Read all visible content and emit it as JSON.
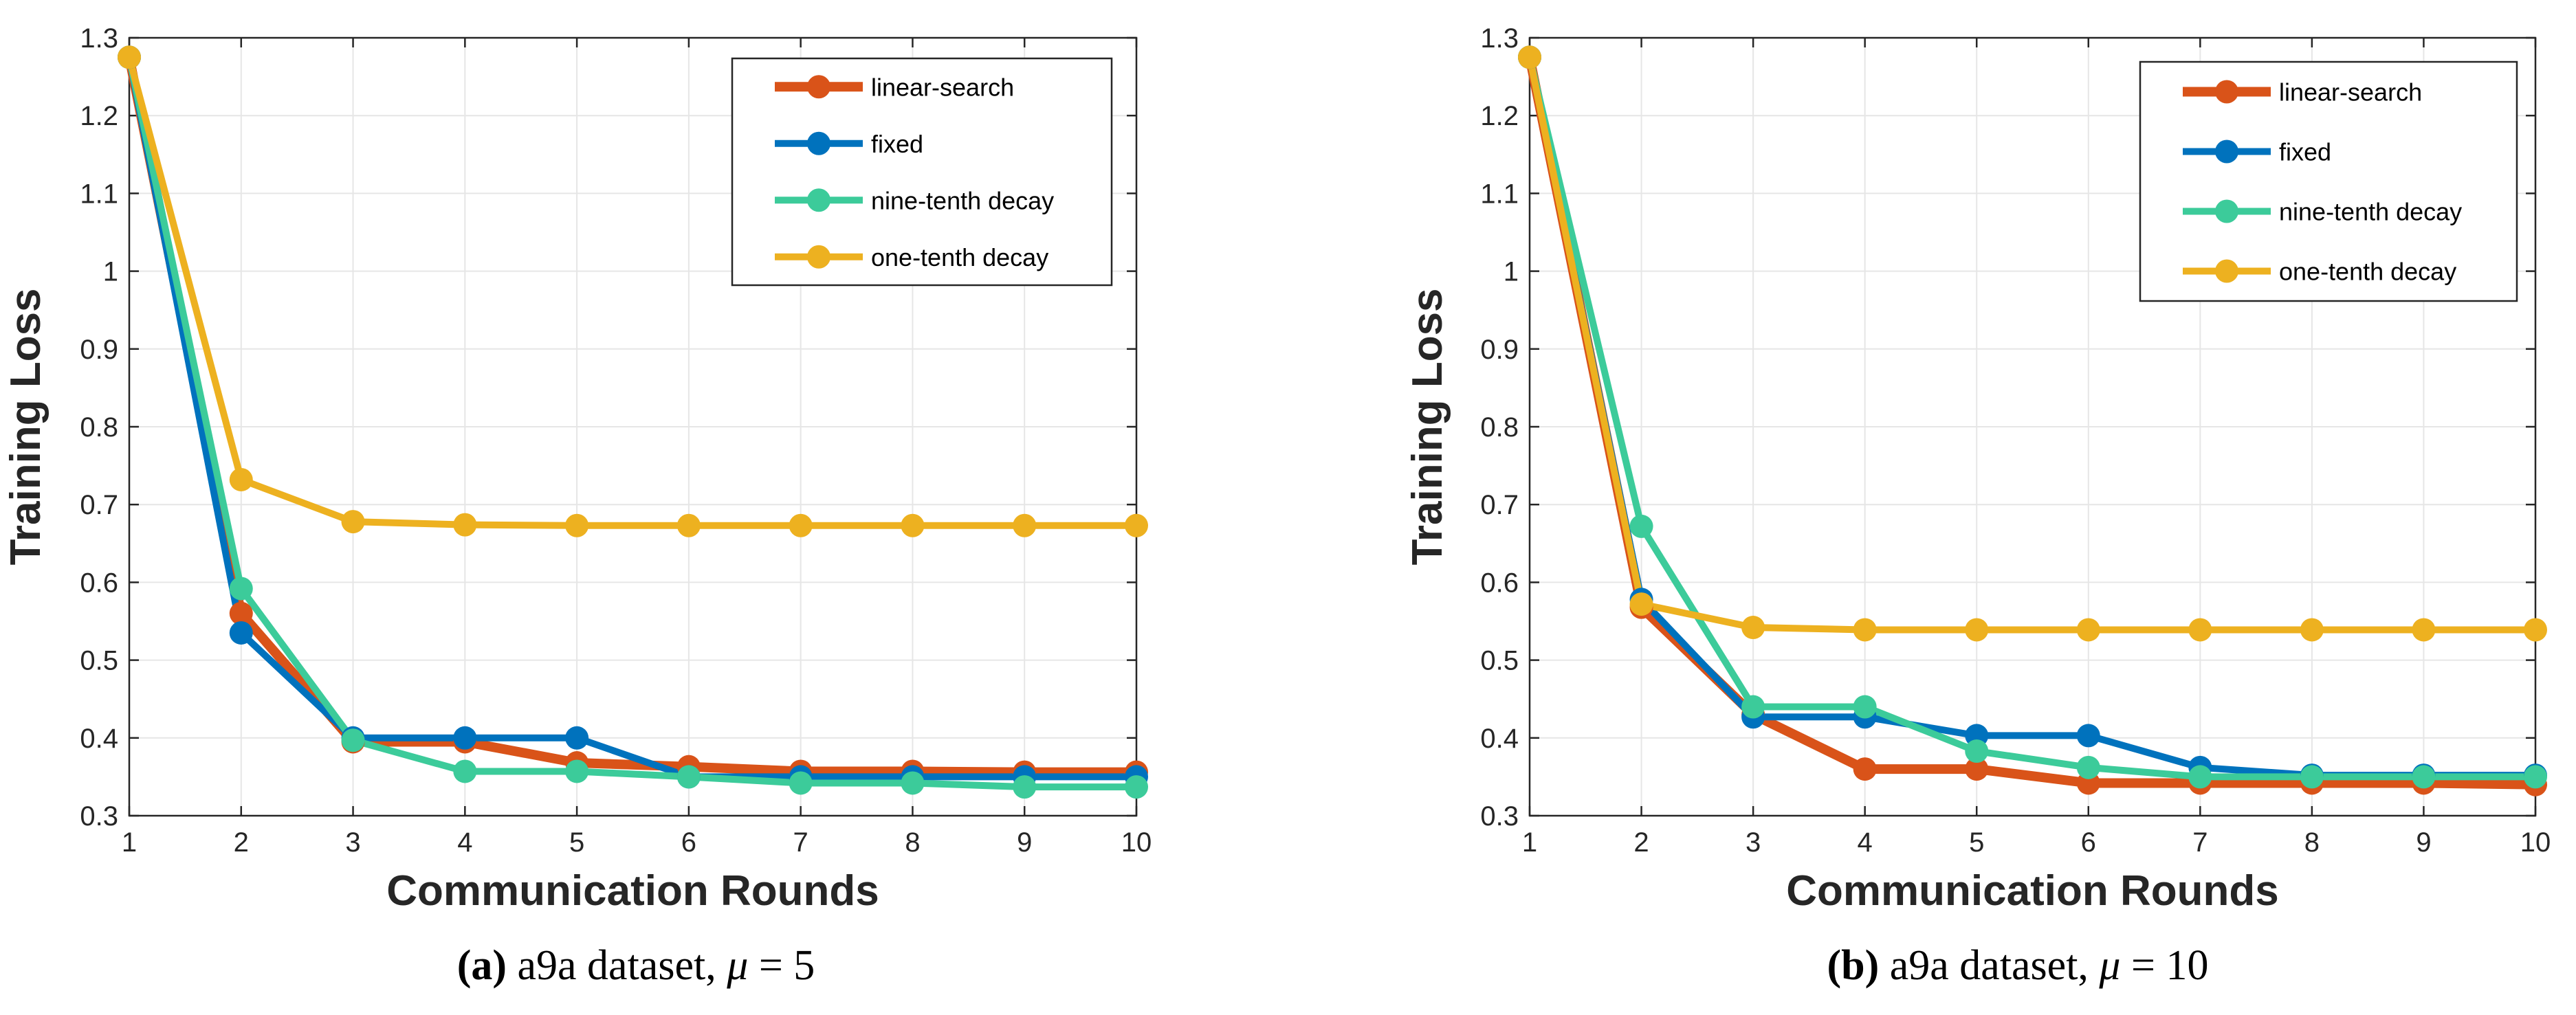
{
  "chart_data": [
    {
      "type": "line",
      "xlabel": "Communication Rounds",
      "ylabel": "Training Loss",
      "xlim": [
        1,
        10
      ],
      "ylim": [
        0.3,
        1.3
      ],
      "xticks": [
        "1",
        "2",
        "3",
        "4",
        "5",
        "6",
        "7",
        "8",
        "9",
        "10"
      ],
      "yticks": [
        "0.3",
        "0.4",
        "0.5",
        "0.6",
        "0.7",
        "0.8",
        "0.9",
        "1",
        "1.1",
        "1.2",
        "1.3"
      ],
      "grid": true,
      "legend_position": "top-right",
      "x": [
        1,
        2,
        3,
        4,
        5,
        6,
        7,
        8,
        9,
        10
      ],
      "series": [
        {
          "name": "linear-search",
          "color": "#D95319",
          "values": [
            1.275,
            0.56,
            0.395,
            0.395,
            0.368,
            0.363,
            0.357,
            0.357,
            0.356,
            0.356
          ]
        },
        {
          "name": "fixed",
          "color": "#0072BD",
          "values": [
            1.275,
            0.535,
            0.4,
            0.4,
            0.4,
            0.35,
            0.35,
            0.35,
            0.35,
            0.35
          ]
        },
        {
          "name": "nine-tenth decay",
          "color": "#3CCB9A",
          "values": [
            1.275,
            0.592,
            0.397,
            0.357,
            0.357,
            0.35,
            0.342,
            0.342,
            0.337,
            0.337
          ]
        },
        {
          "name": "one-tenth decay",
          "color": "#EDB120",
          "values": [
            1.275,
            0.732,
            0.678,
            0.674,
            0.673,
            0.673,
            0.673,
            0.673,
            0.673,
            0.673
          ]
        }
      ],
      "caption": {
        "letter": "(a)",
        "text": " a9a dataset, ",
        "mu": "μ",
        "value": " = 5"
      }
    },
    {
      "type": "line",
      "xlabel": "Communication Rounds",
      "ylabel": "Training Loss",
      "xlim": [
        1,
        10
      ],
      "ylim": [
        0.3,
        1.3
      ],
      "xticks": [
        "1",
        "2",
        "3",
        "4",
        "5",
        "6",
        "7",
        "8",
        "9",
        "10"
      ],
      "yticks": [
        "0.3",
        "0.4",
        "0.5",
        "0.6",
        "0.7",
        "0.8",
        "0.9",
        "1",
        "1.1",
        "1.2",
        "1.3"
      ],
      "grid": true,
      "legend_position": "top-right",
      "x": [
        1,
        2,
        3,
        4,
        5,
        6,
        7,
        8,
        9,
        10
      ],
      "series": [
        {
          "name": "linear-search",
          "color": "#D95319",
          "values": [
            1.275,
            0.568,
            0.43,
            0.36,
            0.36,
            0.342,
            0.342,
            0.342,
            0.342,
            0.34
          ]
        },
        {
          "name": "fixed",
          "color": "#0072BD",
          "values": [
            1.275,
            0.578,
            0.427,
            0.427,
            0.403,
            0.403,
            0.362,
            0.352,
            0.352,
            0.352
          ]
        },
        {
          "name": "nine-tenth decay",
          "color": "#3CCB9A",
          "values": [
            1.275,
            0.672,
            0.44,
            0.44,
            0.383,
            0.362,
            0.35,
            0.35,
            0.35,
            0.35
          ]
        },
        {
          "name": "one-tenth decay",
          "color": "#EDB120",
          "values": [
            1.275,
            0.572,
            0.542,
            0.539,
            0.539,
            0.539,
            0.539,
            0.539,
            0.539,
            0.539
          ]
        }
      ],
      "caption": {
        "letter": "(b)",
        "text": " a9a dataset, ",
        "mu": "μ",
        "value": " = 10"
      }
    }
  ]
}
